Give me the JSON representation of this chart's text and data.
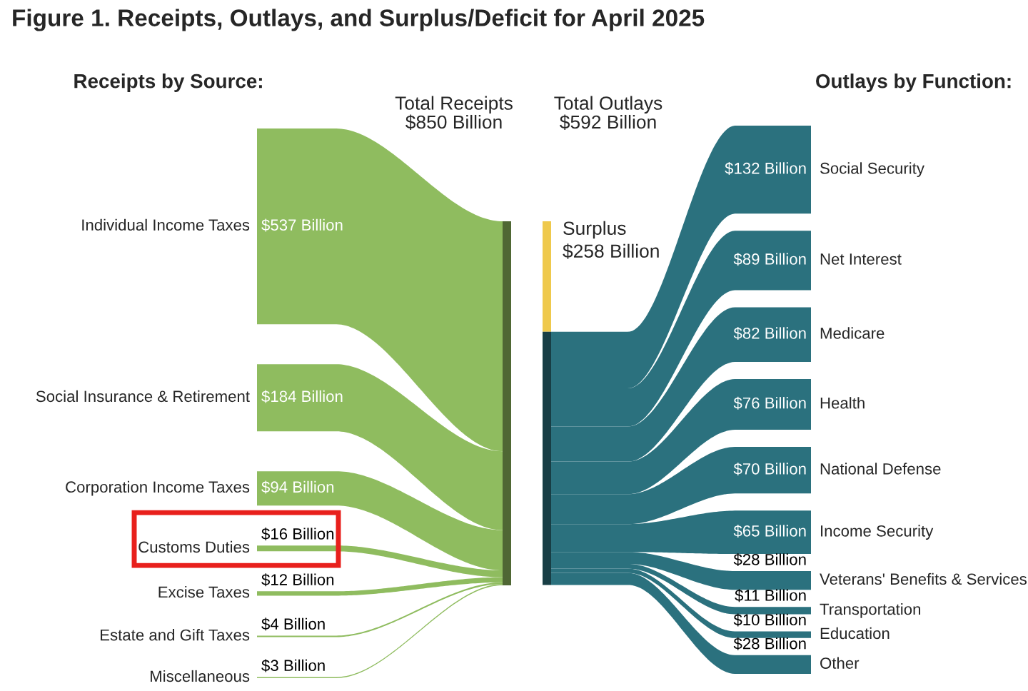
{
  "chart_data": {
    "type": "other",
    "title": "Figure 1. Receipts, Outlays, and Surplus/Deficit for April 2025",
    "categories": [
      "Individual Income Taxes",
      "Social Insurance & Retirement",
      "Corporation Income Taxes",
      "Customs Duties",
      "Excise Taxes",
      "Estate and Gift Taxes",
      "Miscellaneous",
      "Social Security",
      "Net Interest",
      "Medicare",
      "Health",
      "National Defense",
      "Income Security",
      "Veterans' Benefits & Services",
      "Transportation",
      "Education",
      "Other",
      "Surplus"
    ],
    "series": [
      {
        "name": "Receipts by Source:",
        "color": "#8fbc5f",
        "values": [
          537,
          184,
          94,
          16,
          12,
          4,
          3,
          null,
          null,
          null,
          null,
          null,
          null,
          null,
          null,
          null,
          null,
          null
        ],
        "value_labels": [
          "$537 Billion",
          "$184 Billion",
          "$94 Billion",
          "$16 Billion",
          "$12 Billion",
          "$4 Billion",
          "$3 Billion",
          null,
          null,
          null,
          null,
          null,
          null,
          null,
          null,
          null,
          null,
          null
        ]
      },
      {
        "name": "Outlays by Function:",
        "color": "#2b717e",
        "values": [
          null,
          null,
          null,
          null,
          null,
          null,
          null,
          132,
          89,
          82,
          76,
          70,
          65,
          28,
          11,
          10,
          28,
          null
        ],
        "value_labels": [
          null,
          null,
          null,
          null,
          null,
          null,
          null,
          "$132 Billion",
          "$89 Billion",
          "$82 Billion",
          "$76 Billion",
          "$70 Billion",
          "$65 Billion",
          "$28 Billion",
          "$11 Billion",
          "$10 Billion",
          "$28 Billion",
          null
        ]
      },
      {
        "color": "#efc94c",
        "values": [
          null,
          null,
          null,
          null,
          null,
          null,
          null,
          null,
          null,
          null,
          null,
          null,
          null,
          null,
          null,
          null,
          null,
          258
        ],
        "value_labels": [
          null,
          null,
          null,
          null,
          null,
          null,
          null,
          null,
          null,
          null,
          null,
          null,
          null,
          null,
          null,
          null,
          null,
          "$258 Billion"
        ]
      }
    ],
    "annotations": [
      "Total Receipts\n$850 Billion",
      "Total Outlays\n$592 Billion"
    ]
  }
}
